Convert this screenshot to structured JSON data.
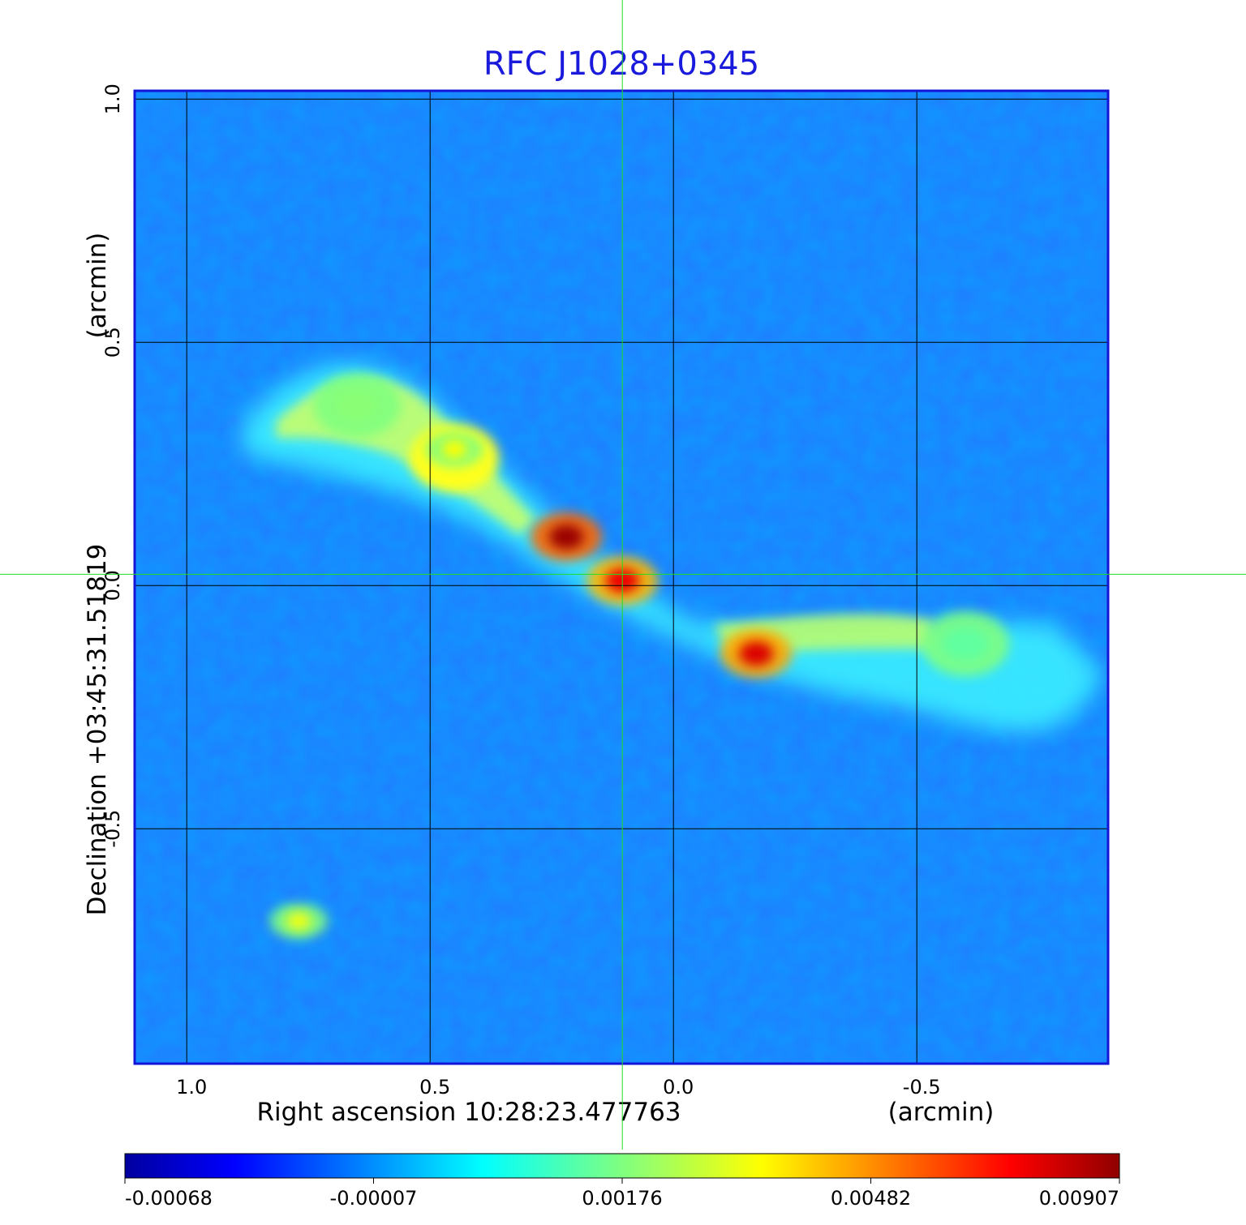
{
  "chart_data": {
    "type": "heatmap",
    "title": "RFC J1028+0345",
    "xlabel": "Right ascension  10:28:23.477763",
    "xunit": "(arcmin)",
    "ylabel": "Declination  +03:45:31.51819",
    "yunit": "(arcmin)",
    "xlim": [
      1.107,
      -0.893
    ],
    "ylim": [
      -0.983,
      1.017
    ],
    "x_ticks": [
      {
        "value": 1.0,
        "label": "1.0"
      },
      {
        "value": 0.5,
        "label": "0.5"
      },
      {
        "value": 0.0,
        "label": "0.0"
      },
      {
        "value": -0.5,
        "label": "-0.5"
      }
    ],
    "y_ticks": [
      {
        "value": -0.5,
        "label": "-0.5"
      },
      {
        "value": 0.0,
        "label": "0.0"
      },
      {
        "value": 0.5,
        "label": "0.5"
      },
      {
        "value": 1.0,
        "label": "1.0"
      }
    ],
    "grid": true,
    "crosshair": {
      "x": 0.105,
      "y": 0.023,
      "color": "#22dd22"
    },
    "colormap": "jet",
    "colorbar": {
      "labels": [
        "-0.00068",
        "-0.00007",
        "0.00176",
        "0.00482",
        "0.00907"
      ],
      "values": [
        -0.00068,
        -7e-05,
        0.00176,
        0.00482,
        0.00907
      ]
    },
    "features": [
      {
        "name": "core",
        "x": 0.105,
        "y": 0.01,
        "peak": 0.0075
      },
      {
        "name": "inner-jet-knot",
        "x": 0.22,
        "y": 0.1,
        "peak": 0.0089
      },
      {
        "name": "counter-jet-knot",
        "x": -0.17,
        "y": -0.14,
        "peak": 0.0078
      },
      {
        "name": "northeast-jet",
        "x": 0.45,
        "y": 0.28,
        "peak": 0.0035
      },
      {
        "name": "northeast-lobe",
        "x": 0.65,
        "y": 0.37,
        "peak": 0.0019
      },
      {
        "name": "southwest-lobe",
        "x": -0.6,
        "y": -0.12,
        "peak": 0.0015
      },
      {
        "name": "compact-source",
        "x": 0.77,
        "y": -0.69,
        "peak": 0.0033
      }
    ]
  }
}
